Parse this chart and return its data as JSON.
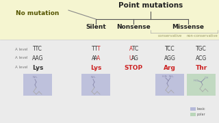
{
  "title": "Point mutations",
  "no_mutation_label": "No mutation",
  "col_headers": [
    "Silent",
    "Nonsense",
    "Missense"
  ],
  "missense_sub": [
    "conservative",
    "non-conservative"
  ],
  "dna_row": [
    "TTC",
    "TTT",
    "ATC",
    "TCC",
    "TGC"
  ],
  "rna_row": [
    "AAG",
    "AAA",
    "UAG",
    "AGG",
    "ACG"
  ],
  "aa_row": [
    "Lys",
    "Lys",
    "STOP",
    "Arg",
    "Thr"
  ],
  "row_label_dna": "A level",
  "row_label_rna": "A level",
  "row_label_aa": "A level",
  "bg_no_mutation": "#f5f5d0",
  "bg_table": "#ebebeb",
  "bg_white": "#ffffff",
  "color_black": "#333333",
  "color_red": "#cc2222",
  "color_gray_label": "#777777",
  "color_missense_sub": "#999966",
  "legend_basic": "#b0b4d8",
  "legend_polar": "#b4d4b4"
}
